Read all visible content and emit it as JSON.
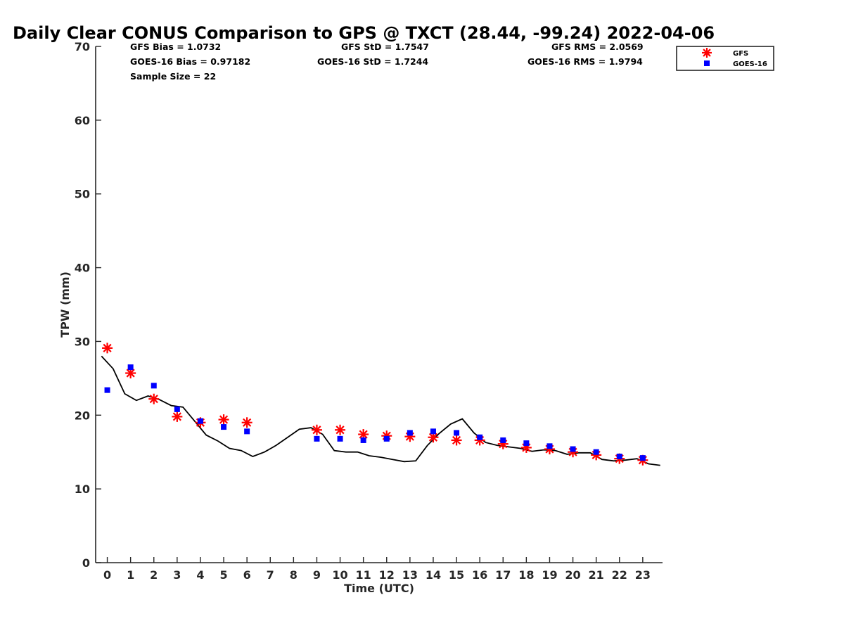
{
  "chart_data": {
    "type": "scatter",
    "title": "Daily Clear CONUS Comparison to GPS @ TXCT (28.44, -99.24) 2022-04-06",
    "xlabel": "Time (UTC)",
    "ylabel": "TPW (mm)",
    "xlim": [
      -0.5,
      23.85
    ],
    "ylim": [
      0,
      70
    ],
    "x_ticks": [
      0,
      1,
      2,
      3,
      4,
      5,
      6,
      7,
      8,
      9,
      10,
      11,
      12,
      13,
      14,
      15,
      16,
      17,
      18,
      19,
      20,
      21,
      22,
      23
    ],
    "y_ticks": [
      0,
      10,
      20,
      30,
      40,
      50,
      60,
      70
    ],
    "grid": false,
    "legend_position": "top-right (outside plot)",
    "stats": {
      "gfs_bias": "GFS Bias = 1.0732",
      "goes_bias": "GOES-16 Bias = 0.97182",
      "sample_size": "Sample Size = 22",
      "gfs_std": "GFS StD = 1.7547",
      "goes_std": "GOES-16 StD = 1.7244",
      "gfs_rms": "GFS RMS = 2.0569",
      "goes_rms": "GOES-16 RMS = 1.9794"
    },
    "series": [
      {
        "name": "GFS",
        "marker": "asterisk",
        "color": "#ff0000",
        "points": [
          [
            0,
            29.1
          ],
          [
            1,
            25.7
          ],
          [
            2,
            22.2
          ],
          [
            3,
            19.8
          ],
          [
            4,
            19.0
          ],
          [
            5,
            19.4
          ],
          [
            6,
            19.0
          ],
          [
            9,
            18.0
          ],
          [
            10,
            18.0
          ],
          [
            11,
            17.4
          ],
          [
            12,
            17.2
          ],
          [
            13,
            17.1
          ],
          [
            14,
            17.0
          ],
          [
            15,
            16.6
          ],
          [
            16,
            16.6
          ],
          [
            17,
            16.1
          ],
          [
            18,
            15.6
          ],
          [
            19,
            15.4
          ],
          [
            20,
            15.0
          ],
          [
            21,
            14.6
          ],
          [
            22,
            14.1
          ],
          [
            23,
            13.9
          ]
        ]
      },
      {
        "name": "GOES-16",
        "marker": "square",
        "color": "#0000ff",
        "points": [
          [
            0,
            23.4
          ],
          [
            1,
            26.5
          ],
          [
            2,
            24.0
          ],
          [
            3,
            20.8
          ],
          [
            4,
            19.2
          ],
          [
            5,
            18.4
          ],
          [
            6,
            17.8
          ],
          [
            9,
            16.8
          ],
          [
            10,
            16.8
          ],
          [
            11,
            16.6
          ],
          [
            12,
            16.8
          ],
          [
            13,
            17.6
          ],
          [
            14,
            17.8
          ],
          [
            15,
            17.6
          ],
          [
            16,
            17.0
          ],
          [
            17,
            16.6
          ],
          [
            18,
            16.2
          ],
          [
            19,
            15.8
          ],
          [
            20,
            15.4
          ],
          [
            21,
            15.0
          ],
          [
            22,
            14.4
          ],
          [
            23,
            14.2
          ]
        ]
      },
      {
        "marker": "line",
        "color": "#000000",
        "points": [
          [
            -0.25,
            28.0
          ],
          [
            0.25,
            26.3
          ],
          [
            0.75,
            22.9
          ],
          [
            1.25,
            22.0
          ],
          [
            1.75,
            22.6
          ],
          [
            2.25,
            22.1
          ],
          [
            2.75,
            21.3
          ],
          [
            3.25,
            21.1
          ],
          [
            3.75,
            19.2
          ],
          [
            4.25,
            17.3
          ],
          [
            4.75,
            16.5
          ],
          [
            5.25,
            15.5
          ],
          [
            5.75,
            15.2
          ],
          [
            6.25,
            14.4
          ],
          [
            6.75,
            15.0
          ],
          [
            7.25,
            15.9
          ],
          [
            7.75,
            17.0
          ],
          [
            8.25,
            18.1
          ],
          [
            8.75,
            18.3
          ],
          [
            9.25,
            17.4
          ],
          [
            9.75,
            15.2
          ],
          [
            10.25,
            15.0
          ],
          [
            10.75,
            15.0
          ],
          [
            11.25,
            14.5
          ],
          [
            11.75,
            14.3
          ],
          [
            12.25,
            14.0
          ],
          [
            12.75,
            13.7
          ],
          [
            13.25,
            13.8
          ],
          [
            13.75,
            15.9
          ],
          [
            14.25,
            17.5
          ],
          [
            14.75,
            18.8
          ],
          [
            15.25,
            19.5
          ],
          [
            15.75,
            17.6
          ],
          [
            16.25,
            16.3
          ],
          [
            16.75,
            15.9
          ],
          [
            17.25,
            15.7
          ],
          [
            17.75,
            15.5
          ],
          [
            18.25,
            15.1
          ],
          [
            18.75,
            15.3
          ],
          [
            19.25,
            15.2
          ],
          [
            19.75,
            14.7
          ],
          [
            20.25,
            14.9
          ],
          [
            20.75,
            14.9
          ],
          [
            21.25,
            14.0
          ],
          [
            21.75,
            13.8
          ],
          [
            22.25,
            13.9
          ],
          [
            22.75,
            14.1
          ],
          [
            23.25,
            13.4
          ],
          [
            23.75,
            13.2
          ]
        ]
      }
    ]
  }
}
